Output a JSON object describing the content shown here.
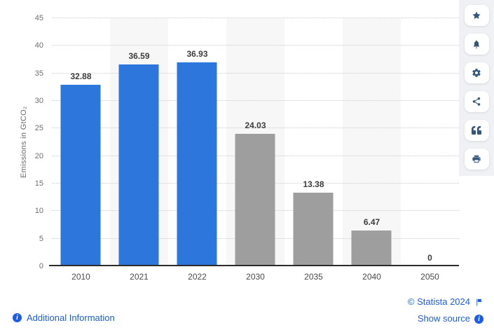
{
  "chart_data": {
    "type": "bar",
    "title": "",
    "categories": [
      "2010",
      "2021",
      "2022",
      "2030",
      "2035",
      "2040",
      "2050"
    ],
    "values": [
      32.88,
      36.59,
      36.93,
      24.03,
      13.38,
      6.47,
      0
    ],
    "value_labels": [
      "32.88",
      "36.59",
      "36.93",
      "24.03",
      "13.38",
      "6.47",
      "0"
    ],
    "bar_colors": [
      "#2d77dc",
      "#2d77dc",
      "#2d77dc",
      "#9e9e9e",
      "#9e9e9e",
      "#9e9e9e",
      "#9e9e9e"
    ],
    "xlabel": "",
    "ylabel": "Emissions in GtCO₂",
    "ylim": [
      0,
      45
    ],
    "yticks": [
      0,
      5,
      10,
      15,
      20,
      25,
      30,
      35,
      40,
      45
    ],
    "grid": "horizontal-dotted",
    "legend": "none",
    "striped_columns": [
      1,
      3,
      5
    ]
  },
  "toolbar": {
    "buttons": [
      {
        "name": "favorite",
        "icon": "star-icon"
      },
      {
        "name": "notifications",
        "icon": "bell-icon"
      },
      {
        "name": "settings",
        "icon": "gear-icon"
      },
      {
        "name": "share",
        "icon": "share-icon"
      },
      {
        "name": "cite",
        "icon": "quote-icon"
      },
      {
        "name": "print",
        "icon": "printer-icon"
      }
    ]
  },
  "footer": {
    "additional_information_label": "Additional Information",
    "copyright_label": "© Statista 2024",
    "show_source_label": "Show source"
  },
  "colors": {
    "bar_blue": "#2d77dc",
    "bar_gray": "#9e9e9e",
    "link_blue": "#1d5ce6",
    "icon_navy": "#35567b",
    "sidebar_bg": "#eff1f4",
    "stripe_bg": "#f7f7f8"
  }
}
